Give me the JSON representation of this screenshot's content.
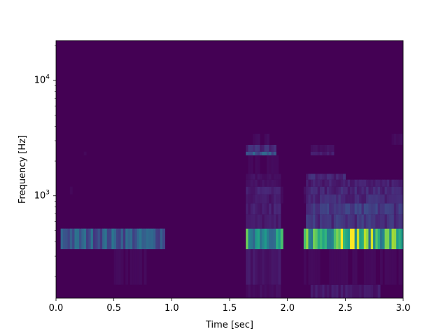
{
  "chart_data": {
    "type": "heatmap",
    "title": "",
    "xlabel": "Time [sec]",
    "ylabel": "Frequency [Hz]",
    "xlim": [
      0.0,
      3.0
    ],
    "ylim": [
      130,
      22050
    ],
    "y_scale": "log",
    "colormap": "viridis",
    "x_ticks": [
      {
        "value": 0.0,
        "label": "0.0"
      },
      {
        "value": 0.5,
        "label": "0.5"
      },
      {
        "value": 1.0,
        "label": "1.0"
      },
      {
        "value": 1.5,
        "label": "1.5"
      },
      {
        "value": 2.0,
        "label": "2.0"
      },
      {
        "value": 2.5,
        "label": "2.5"
      },
      {
        "value": 3.0,
        "label": "3.0"
      }
    ],
    "y_ticks": [
      {
        "value": 1000,
        "base": "10",
        "exp": "3"
      },
      {
        "value": 10000,
        "base": "10",
        "exp": "4"
      }
    ],
    "freq_bands": [
      {
        "f0": 130,
        "f1": 170,
        "profile": "low"
      },
      {
        "f0": 170,
        "f1": 345,
        "profile": "sub"
      },
      {
        "f0": 345,
        "f1": 520,
        "profile": "fund"
      },
      {
        "f0": 520,
        "f1": 690,
        "profile": "h2"
      },
      {
        "f0": 690,
        "f1": 860,
        "profile": "h3"
      },
      {
        "f0": 860,
        "f1": 1030,
        "profile": "h4"
      },
      {
        "f0": 1030,
        "f1": 1200,
        "profile": "h5"
      },
      {
        "f0": 1200,
        "f1": 1380,
        "profile": "h6"
      },
      {
        "f0": 1380,
        "f1": 1550,
        "profile": "h7"
      },
      {
        "f0": 1550,
        "f1": 2240,
        "profile": "weak"
      },
      {
        "f0": 2240,
        "f1": 2410,
        "profile": "h14"
      },
      {
        "f0": 2410,
        "f1": 2760,
        "profile": "h15"
      },
      {
        "f0": 2760,
        "f1": 3450,
        "profile": "faint"
      },
      {
        "f0": 3450,
        "f1": 22050,
        "profile": "none"
      }
    ],
    "time_segments": [
      {
        "t0": 0.05,
        "t1": 0.95,
        "strength": 0.28
      },
      {
        "t0": 1.65,
        "t1": 1.95,
        "strength": 0.55
      },
      {
        "t0": 2.15,
        "t1": 3.0,
        "strength": 0.65
      }
    ],
    "peak": {
      "t": 2.5,
      "f0": 345,
      "f1": 520,
      "intensity": 1.0
    }
  }
}
